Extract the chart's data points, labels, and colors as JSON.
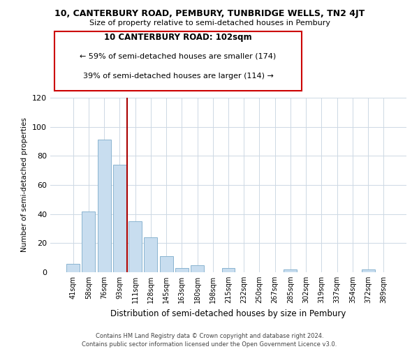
{
  "title": "10, CANTERBURY ROAD, PEMBURY, TUNBRIDGE WELLS, TN2 4JT",
  "subtitle": "Size of property relative to semi-detached houses in Pembury",
  "xlabel": "Distribution of semi-detached houses by size in Pembury",
  "ylabel": "Number of semi-detached properties",
  "bar_color": "#c8ddef",
  "bar_edge_color": "#8ab4d0",
  "categories": [
    "41sqm",
    "58sqm",
    "76sqm",
    "93sqm",
    "111sqm",
    "128sqm",
    "145sqm",
    "163sqm",
    "180sqm",
    "198sqm",
    "215sqm",
    "232sqm",
    "250sqm",
    "267sqm",
    "285sqm",
    "302sqm",
    "319sqm",
    "337sqm",
    "354sqm",
    "372sqm",
    "389sqm"
  ],
  "values": [
    6,
    42,
    91,
    74,
    35,
    24,
    11,
    3,
    5,
    0,
    3,
    0,
    0,
    0,
    2,
    0,
    0,
    0,
    0,
    2,
    0
  ],
  "ylim": [
    0,
    120
  ],
  "yticks": [
    0,
    20,
    40,
    60,
    80,
    100,
    120
  ],
  "marker_line_color": "#aa0000",
  "marker_label": "10 CANTERBURY ROAD: 102sqm",
  "smaller_pct": "59%",
  "smaller_count": 174,
  "larger_pct": "39%",
  "larger_count": 114,
  "annotation_box_color": "#ffffff",
  "annotation_box_edge": "#cc0000",
  "footer1": "Contains HM Land Registry data © Crown copyright and database right 2024.",
  "footer2": "Contains public sector information licensed under the Open Government Licence v3.0.",
  "bg_color": "#ffffff",
  "grid_color": "#cdd8e4"
}
